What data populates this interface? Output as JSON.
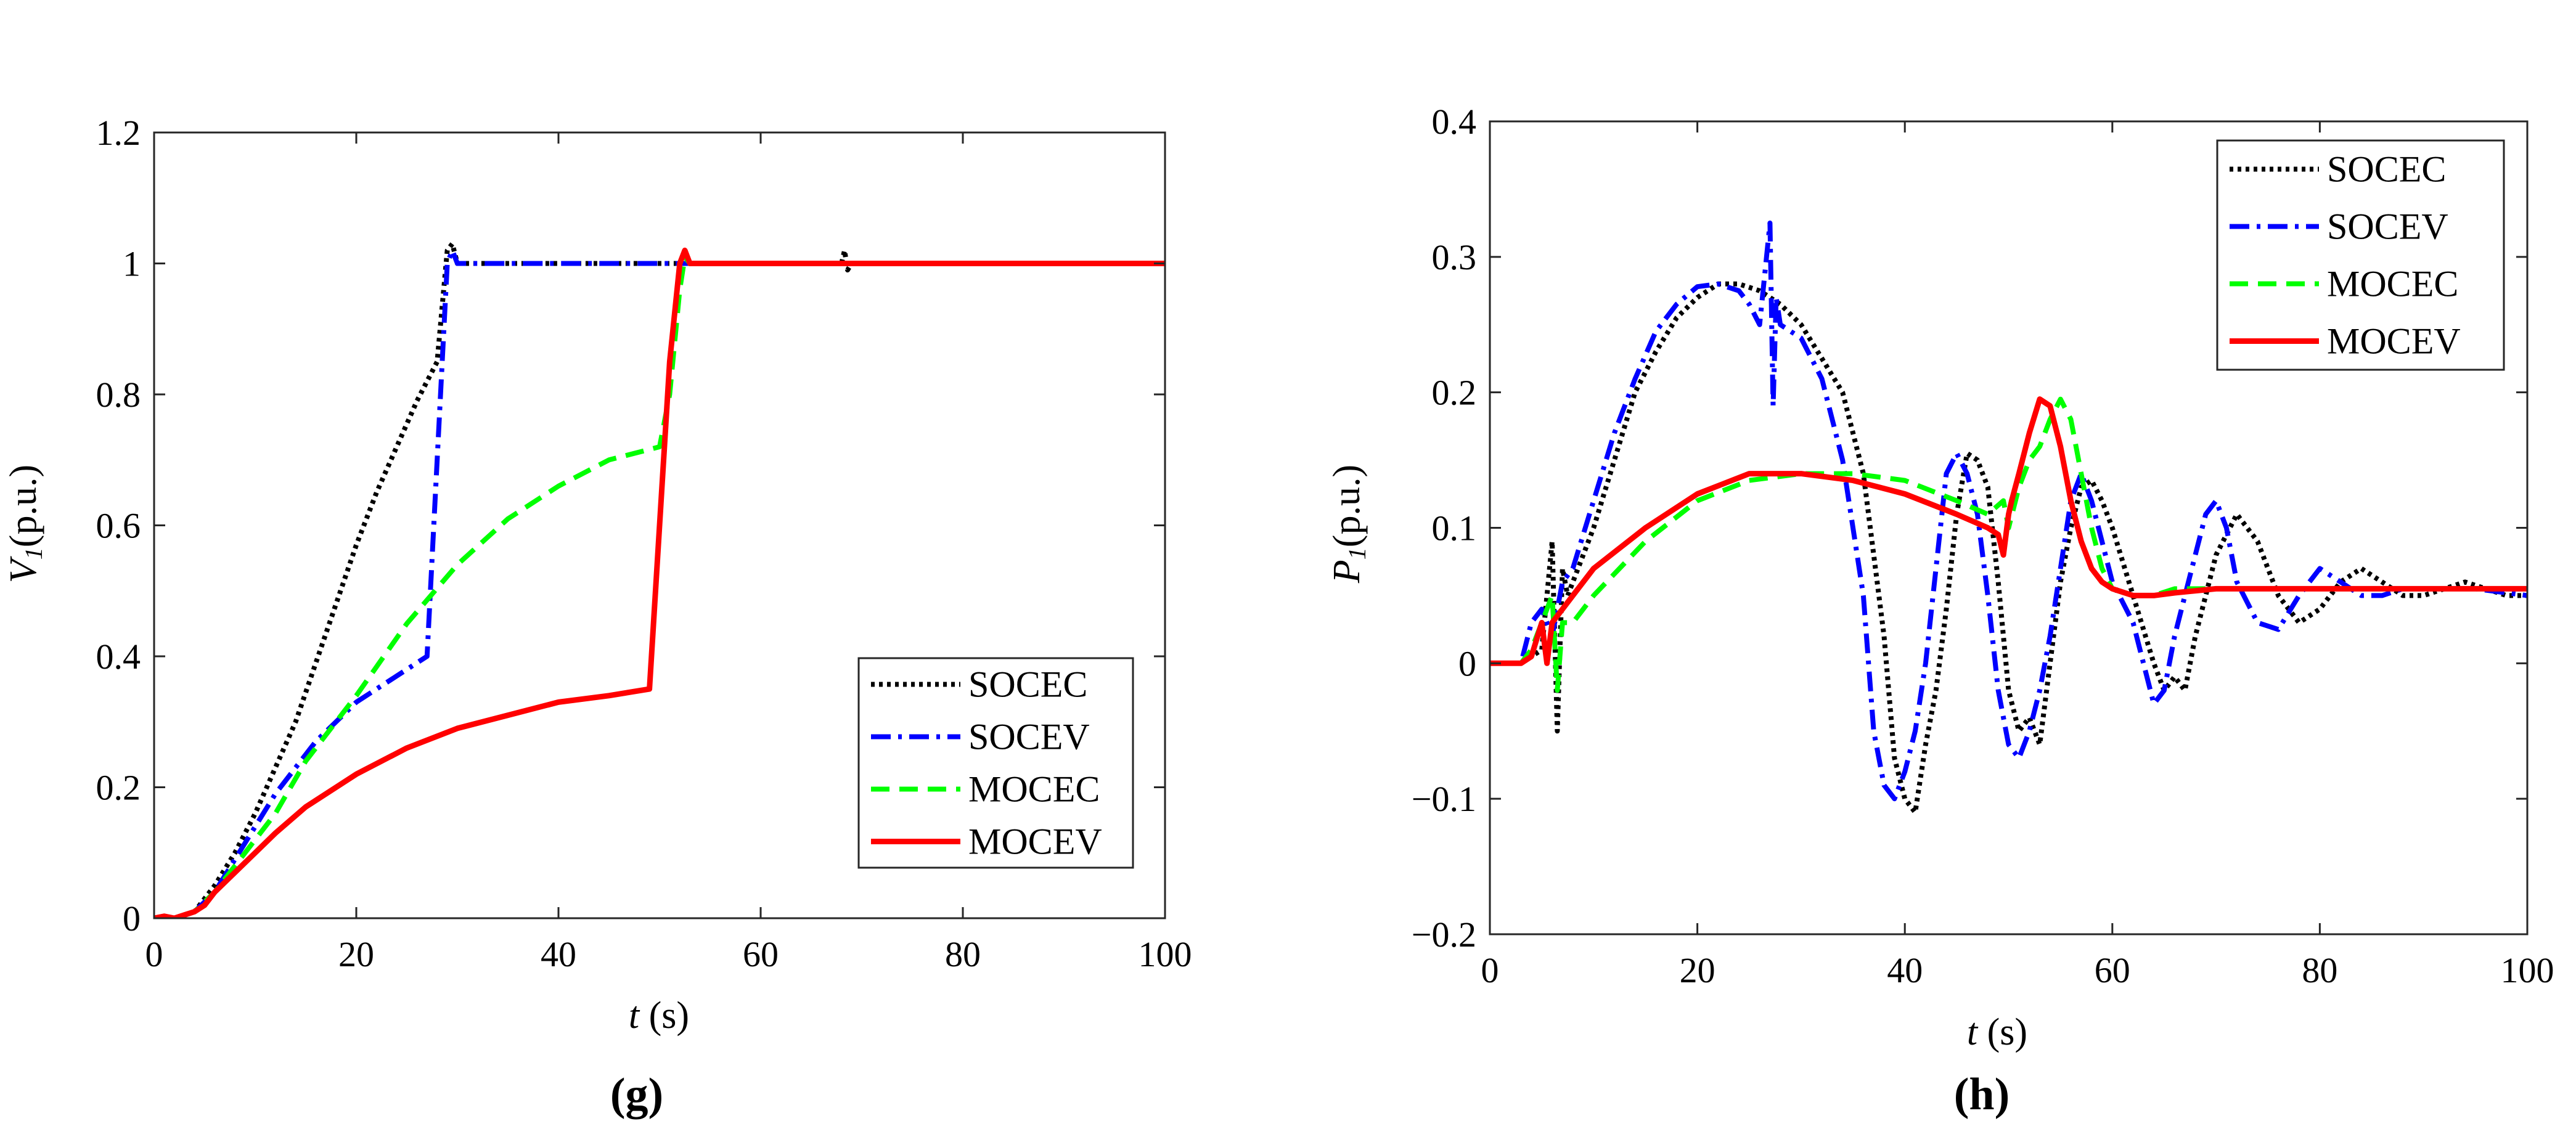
{
  "chart_data": [
    {
      "type": "line",
      "panel_label": "(g)",
      "xlabel_var": "t",
      "xlabel_unit": " (s)",
      "ylabel_var": "V",
      "ylabel_sub": "1",
      "ylabel_unit": "(p.u.)",
      "xlim": [
        0,
        100
      ],
      "ylim": [
        0,
        1.2
      ],
      "xticks": [
        0,
        20,
        40,
        60,
        80,
        100
      ],
      "xtick_labels": [
        "0",
        "20",
        "40",
        "60",
        "80",
        "100"
      ],
      "yticks": [
        0,
        0.2,
        0.4,
        0.6,
        0.8,
        1,
        1.2
      ],
      "ytick_labels": [
        "0",
        "0.2",
        "0.4",
        "0.6",
        "0.8",
        "1",
        "1.2"
      ],
      "legend_position": "bottom-right",
      "series": [
        {
          "name": "SOCEC",
          "color": "#000000",
          "style": "dotted",
          "x": [
            0,
            2,
            4,
            6,
            8,
            10,
            12,
            14,
            16,
            18,
            20,
            22,
            24,
            26,
            28,
            29,
            29.5,
            30,
            40,
            50,
            60,
            68,
            68.3,
            68.6,
            69,
            80,
            100
          ],
          "y": [
            0,
            0,
            0.01,
            0.05,
            0.1,
            0.16,
            0.23,
            0.3,
            0.39,
            0.48,
            0.57,
            0.65,
            0.72,
            0.79,
            0.85,
            1.02,
            1.03,
            1.0,
            1.0,
            1.0,
            1.0,
            1.0,
            1.02,
            0.99,
            1.0,
            1.0,
            1.0
          ]
        },
        {
          "name": "SOCEV",
          "color": "#0000ff",
          "style": "dashdot",
          "x": [
            0,
            2,
            4,
            6,
            8,
            10,
            12,
            14,
            16,
            18,
            20,
            22,
            24,
            26,
            27,
            28,
            29,
            29.5,
            30,
            40,
            50,
            60,
            100
          ],
          "y": [
            0,
            0,
            0.01,
            0.04,
            0.09,
            0.14,
            0.19,
            0.23,
            0.27,
            0.3,
            0.33,
            0.35,
            0.37,
            0.39,
            0.4,
            0.7,
            1.0,
            1.02,
            1.0,
            1.0,
            1.0,
            1.0,
            1.0
          ]
        },
        {
          "name": "MOCEC",
          "color": "#00ff00",
          "style": "dashed",
          "x": [
            0,
            2,
            4,
            6,
            8,
            10,
            12,
            15,
            20,
            25,
            30,
            35,
            40,
            45,
            50,
            51,
            52,
            52.5,
            53,
            60,
            100
          ],
          "y": [
            0,
            0,
            0.01,
            0.04,
            0.08,
            0.12,
            0.16,
            0.24,
            0.34,
            0.45,
            0.54,
            0.61,
            0.66,
            0.7,
            0.72,
            0.8,
            0.96,
            1.01,
            1.0,
            1.0,
            1.0
          ]
        },
        {
          "name": "MOCEV",
          "color": "#ff0000",
          "style": "solid",
          "x": [
            0,
            1,
            2,
            3,
            4,
            5,
            6,
            8,
            10,
            12,
            15,
            20,
            25,
            30,
            35,
            40,
            45,
            49,
            50,
            51,
            52,
            52.5,
            53,
            60,
            100
          ],
          "y": [
            0,
            0.003,
            0,
            0.005,
            0.01,
            0.02,
            0.04,
            0.07,
            0.1,
            0.13,
            0.17,
            0.22,
            0.26,
            0.29,
            0.31,
            0.33,
            0.34,
            0.35,
            0.6,
            0.85,
            1.0,
            1.02,
            1.0,
            1.0,
            1.0
          ]
        }
      ]
    },
    {
      "type": "line",
      "panel_label": "(h)",
      "xlabel_var": "t",
      "xlabel_unit": " (s)",
      "ylabel_var": "P",
      "ylabel_sub": "1",
      "ylabel_unit": "(p.u.)",
      "xlim": [
        0,
        100
      ],
      "ylim": [
        -0.2,
        0.4
      ],
      "xticks": [
        0,
        20,
        40,
        60,
        80,
        100
      ],
      "xtick_labels": [
        "0",
        "20",
        "40",
        "60",
        "80",
        "100"
      ],
      "yticks": [
        -0.2,
        -0.1,
        0,
        0.1,
        0.2,
        0.3,
        0.4
      ],
      "ytick_labels": [
        "−0.2",
        "−0.1",
        "0",
        "0.1",
        "0.2",
        "0.3",
        "0.4"
      ],
      "legend_position": "top-right",
      "series": [
        {
          "name": "SOCEC",
          "color": "#000000",
          "style": "dotted",
          "x": [
            0,
            3,
            5,
            6,
            6.5,
            7,
            7.5,
            8,
            10,
            12,
            14,
            16,
            18,
            20,
            22,
            24,
            26,
            28,
            30,
            32,
            34,
            36,
            38,
            39,
            40,
            41,
            42,
            43,
            44,
            45,
            46,
            47,
            48,
            49,
            50,
            51,
            52,
            53,
            54,
            55,
            56,
            57,
            58,
            59,
            60,
            62,
            64,
            65,
            66,
            67,
            68,
            69,
            70,
            72,
            74,
            76,
            78,
            80,
            82,
            84,
            86,
            88,
            90,
            92,
            94,
            96,
            98,
            100
          ],
          "y": [
            0,
            0,
            0.01,
            0.09,
            -0.05,
            0.07,
            0.05,
            0.06,
            0.1,
            0.15,
            0.2,
            0.23,
            0.255,
            0.27,
            0.28,
            0.28,
            0.275,
            0.265,
            0.25,
            0.225,
            0.2,
            0.14,
            0.02,
            -0.07,
            -0.1,
            -0.11,
            -0.06,
            -0.02,
            0.04,
            0.11,
            0.155,
            0.15,
            0.13,
            0.06,
            -0.02,
            -0.05,
            -0.04,
            -0.06,
            0.0,
            0.06,
            0.1,
            0.13,
            0.135,
            0.12,
            0.1,
            0.05,
            0.0,
            -0.02,
            -0.01,
            -0.02,
            0.02,
            0.05,
            0.08,
            0.11,
            0.09,
            0.05,
            0.03,
            0.04,
            0.06,
            0.07,
            0.06,
            0.05,
            0.05,
            0.055,
            0.06,
            0.055,
            0.05,
            0.05
          ]
        },
        {
          "name": "SOCEV",
          "color": "#0000ff",
          "style": "dashdot",
          "x": [
            0,
            3,
            4,
            5,
            6,
            7,
            8,
            10,
            12,
            14,
            16,
            18,
            20,
            22,
            24,
            25,
            26,
            27,
            27.3,
            27.6,
            28,
            30,
            32,
            34,
            36,
            37,
            38,
            39,
            40,
            41,
            42,
            43,
            44,
            45,
            46,
            47,
            48,
            49,
            50,
            51,
            52,
            53,
            54,
            55,
            56,
            57,
            58,
            59,
            60,
            62,
            63,
            64,
            65,
            66,
            67,
            68,
            69,
            70,
            71,
            72,
            74,
            76,
            78,
            80,
            82,
            84,
            86,
            88,
            90,
            95,
            100
          ],
          "y": [
            0,
            0,
            0.03,
            0.04,
            0.02,
            0.06,
            0.07,
            0.12,
            0.17,
            0.21,
            0.245,
            0.265,
            0.278,
            0.28,
            0.275,
            0.265,
            0.25,
            0.325,
            0.19,
            0.27,
            0.25,
            0.24,
            0.21,
            0.15,
            0.05,
            -0.05,
            -0.09,
            -0.1,
            -0.08,
            -0.05,
            0.0,
            0.07,
            0.14,
            0.155,
            0.14,
            0.11,
            0.05,
            -0.02,
            -0.06,
            -0.07,
            -0.05,
            -0.02,
            0.02,
            0.07,
            0.12,
            0.14,
            0.12,
            0.09,
            0.06,
            0.03,
            0.0,
            -0.03,
            -0.02,
            0.02,
            0.05,
            0.08,
            0.11,
            0.12,
            0.1,
            0.06,
            0.03,
            0.025,
            0.05,
            0.07,
            0.06,
            0.05,
            0.05,
            0.055,
            0.055,
            0.055,
            0.05
          ]
        },
        {
          "name": "MOCEC",
          "color": "#00ff00",
          "style": "dashed",
          "x": [
            0,
            3,
            4,
            5,
            6,
            6.5,
            7,
            8,
            10,
            15,
            20,
            25,
            30,
            35,
            40,
            45,
            48,
            49.5,
            50,
            51,
            52,
            53,
            54,
            55,
            56,
            57,
            58,
            59,
            60,
            62,
            64,
            66,
            68,
            70,
            80,
            90,
            100
          ],
          "y": [
            0,
            0,
            0.01,
            0.03,
            0.05,
            -0.02,
            0.03,
            0.03,
            0.05,
            0.09,
            0.12,
            0.135,
            0.14,
            0.14,
            0.135,
            0.12,
            0.11,
            0.12,
            0.1,
            0.13,
            0.15,
            0.16,
            0.18,
            0.195,
            0.18,
            0.14,
            0.1,
            0.07,
            0.055,
            0.05,
            0.05,
            0.055,
            0.055,
            0.055,
            0.055,
            0.055,
            0.055
          ]
        },
        {
          "name": "MOCEV",
          "color": "#ff0000",
          "style": "solid",
          "x": [
            0,
            3,
            4,
            5,
            5.5,
            6,
            7,
            8,
            10,
            15,
            20,
            25,
            30,
            35,
            40,
            45,
            48,
            49,
            49.5,
            50,
            50.3,
            51,
            52,
            53,
            54,
            55,
            56,
            57,
            58,
            59,
            60,
            62,
            64,
            66,
            70,
            80,
            90,
            100
          ],
          "y": [
            0,
            0,
            0.005,
            0.03,
            0.0,
            0.03,
            0.04,
            0.05,
            0.07,
            0.1,
            0.125,
            0.14,
            0.14,
            0.135,
            0.125,
            0.11,
            0.1,
            0.095,
            0.08,
            0.11,
            0.12,
            0.14,
            0.17,
            0.195,
            0.19,
            0.16,
            0.12,
            0.09,
            0.07,
            0.06,
            0.055,
            0.05,
            0.05,
            0.052,
            0.055,
            0.055,
            0.055,
            0.055
          ]
        }
      ]
    }
  ]
}
